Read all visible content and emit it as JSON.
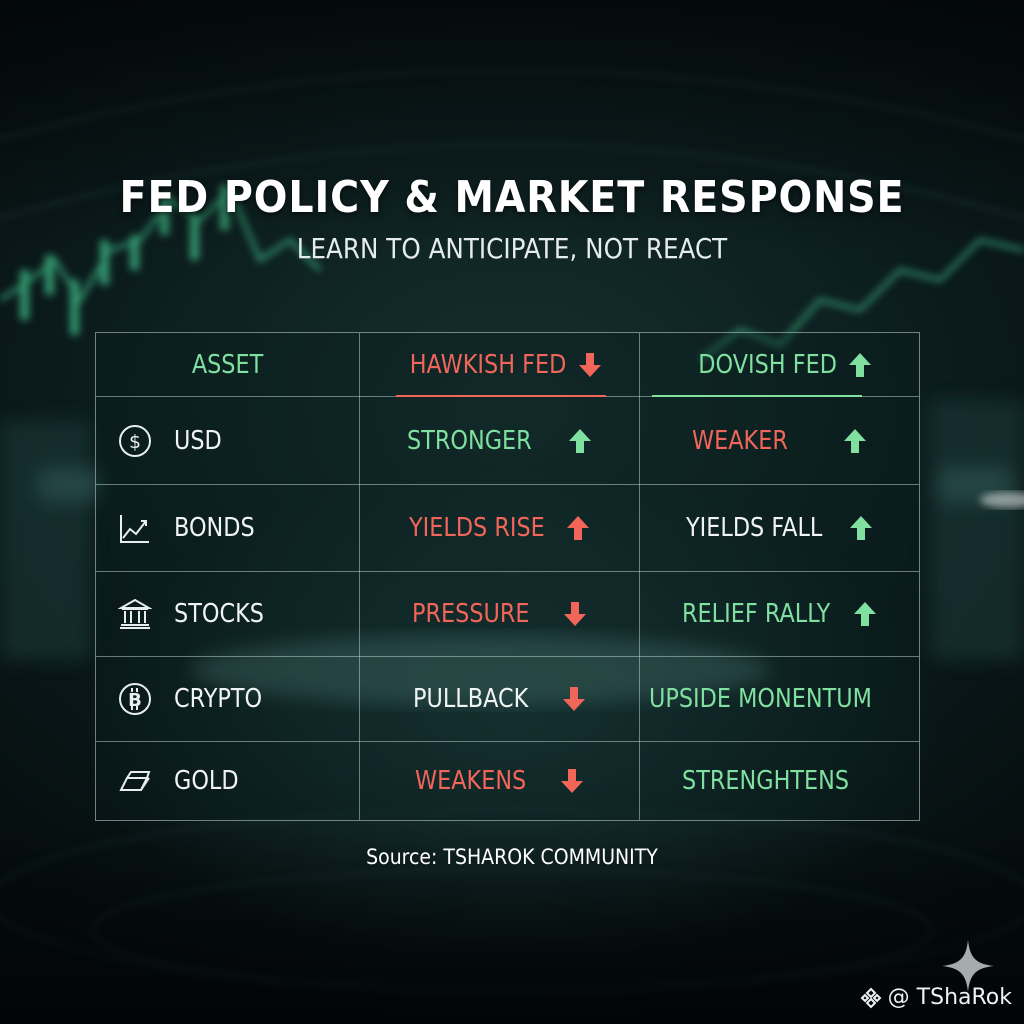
{
  "title": "FED POLICY & MARKET RESPONSE",
  "subtitle": "LEARN TO ANTICIPATE, NOT REACT",
  "table": {
    "headers": [
      {
        "label": "ASSET",
        "color": "#7fe0a0"
      },
      {
        "label": "HAWKISH FED",
        "color": "#f2665a",
        "arrow": "down"
      },
      {
        "label": "DOVISH FED",
        "color": "#7fe0a0",
        "arrow": "up"
      }
    ],
    "rows": [
      {
        "icon": "dollar-coin-icon",
        "asset": "USD",
        "hawkish": {
          "text": "STRONGER",
          "color": "green",
          "arrow": "up-green"
        },
        "dovish": {
          "text": "WEAKER",
          "color": "red",
          "arrow": "up-green"
        }
      },
      {
        "icon": "line-chart-icon",
        "asset": "BONDS",
        "hawkish": {
          "text": "YIELDS RISE",
          "color": "red",
          "arrow": "up-red"
        },
        "dovish": {
          "text": "YIELDS FALL",
          "color": "white",
          "arrow": "up-green"
        }
      },
      {
        "icon": "bank-building-icon",
        "asset": "STOCKS",
        "hawkish": {
          "text": "PRESSURE",
          "color": "red",
          "arrow": "down-red"
        },
        "dovish": {
          "text": "RELIEF RALLY",
          "color": "green",
          "arrow": "up-green"
        }
      },
      {
        "icon": "bitcoin-icon",
        "asset": "CRYPTO",
        "hawkish": {
          "text": "PULLBACK",
          "color": "white",
          "arrow": "down-red"
        },
        "dovish": {
          "text": "UPSIDE MONENTUM",
          "color": "green",
          "arrow": ""
        }
      },
      {
        "icon": "gold-bar-icon",
        "asset": "GOLD",
        "hawkish": {
          "text": "WEAKENS",
          "color": "red",
          "arrow": "down-red"
        },
        "dovish": {
          "text": "STRENGHTENS",
          "color": "green",
          "arrow": ""
        }
      }
    ]
  },
  "source": "Source: TSHAROK COMMUNITY",
  "watermark": "@ TShaRok",
  "colors": {
    "green": "#7fe0a0",
    "red": "#f2665a",
    "white": "#f1f4f4"
  }
}
